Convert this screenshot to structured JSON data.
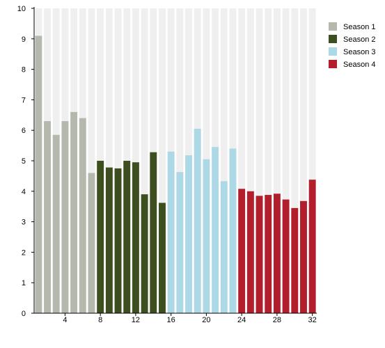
{
  "chart_data": {
    "type": "bar",
    "title": "",
    "xlabel": "",
    "ylabel": "",
    "xlim": [
      0.5,
      32.5
    ],
    "ylim": [
      0,
      10
    ],
    "x_ticks": [
      4,
      8,
      12,
      16,
      20,
      24,
      28,
      32
    ],
    "y_ticks": [
      0,
      1,
      2,
      3,
      4,
      5,
      6,
      7,
      8,
      9,
      10
    ],
    "grid": "vertical bands",
    "legend_position": "top-right",
    "series": [
      {
        "name": "Season 1",
        "color": "#b5b9ad",
        "x": [
          1,
          2,
          3,
          4,
          5,
          6,
          7
        ],
        "values": [
          9.1,
          6.3,
          5.85,
          6.3,
          6.6,
          6.4,
          4.6
        ]
      },
      {
        "name": "Season 2",
        "color": "#3d4e1f",
        "x": [
          8,
          9,
          10,
          11,
          12,
          13,
          14,
          15
        ],
        "values": [
          5.0,
          4.78,
          4.75,
          5.0,
          4.95,
          3.9,
          5.28,
          3.62
        ]
      },
      {
        "name": "Season 3",
        "color": "#add8e6",
        "x": [
          16,
          17,
          18,
          19,
          20,
          21,
          22,
          23
        ],
        "values": [
          5.3,
          4.63,
          5.18,
          6.05,
          5.05,
          5.45,
          4.33,
          5.4
        ]
      },
      {
        "name": "Season 4",
        "color": "#b21e2b",
        "x": [
          24,
          25,
          26,
          27,
          28,
          29,
          30,
          31,
          32
        ],
        "values": [
          4.08,
          4.0,
          3.85,
          3.88,
          3.92,
          3.73,
          3.45,
          3.68,
          4.38
        ]
      }
    ]
  }
}
